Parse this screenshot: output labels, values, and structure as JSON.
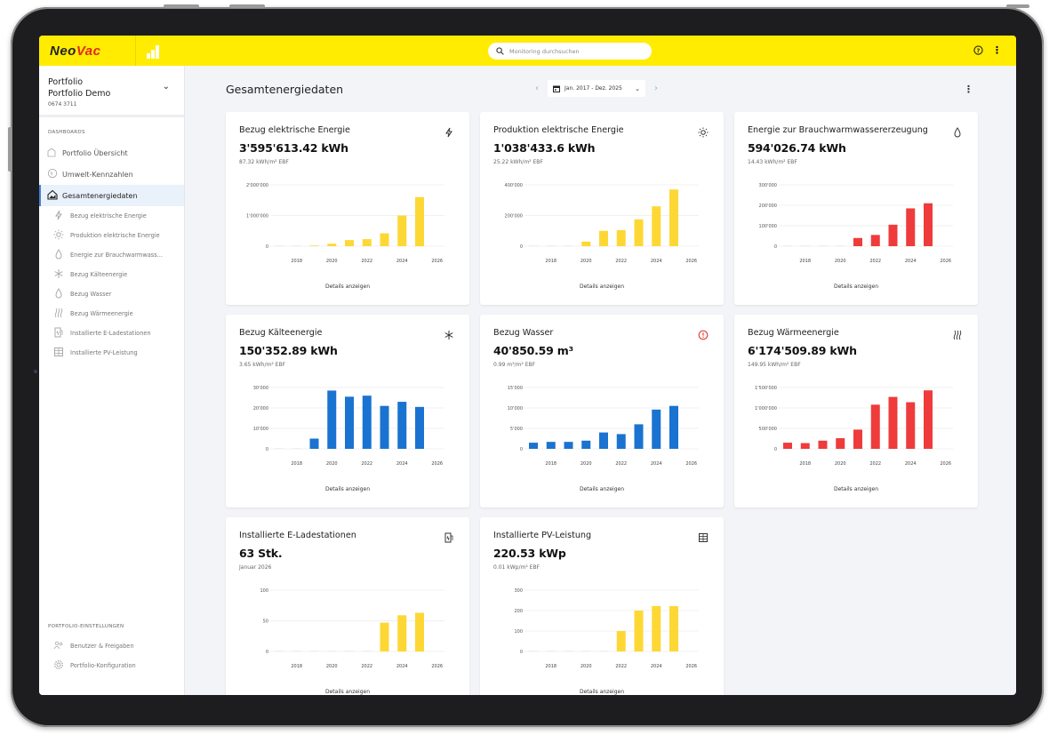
{
  "brand": {
    "name_part1": "Neo",
    "name_part2": "Vac",
    "yellow": "#ffec00"
  },
  "search": {
    "placeholder": "Monitoring durchsuchen"
  },
  "topbar": {
    "help_icon": "help-circle-icon",
    "menu_icon": "kebab-menu-icon"
  },
  "sidebar": {
    "portfolio_label": "Portfolio",
    "portfolio_name": "Portfolio Demo",
    "portfolio_id": "0674 3711",
    "dashboards_heading": "DASHBOARDS",
    "items": [
      {
        "label": "Portfolio Übersicht",
        "icon": "building-icon"
      },
      {
        "label": "Umwelt-Kennzahlen",
        "icon": "globe-icon"
      },
      {
        "label": "Gesamtenergiedaten",
        "icon": "home-chart-icon",
        "active": true
      }
    ],
    "sub_items": [
      {
        "label": "Bezug elektrische Energie",
        "icon": "bolt-icon"
      },
      {
        "label": "Produktion elektrische Energie",
        "icon": "sun-icon"
      },
      {
        "label": "Energie zur Brauchwarmwass...",
        "icon": "drop-icon"
      },
      {
        "label": "Bezug Kälteenergie",
        "icon": "snowflake-icon"
      },
      {
        "label": "Bezug Wasser",
        "icon": "drop-icon"
      },
      {
        "label": "Bezug Wärmeenergie",
        "icon": "heat-icon"
      },
      {
        "label": "Installierte E-Ladestationen",
        "icon": "charging-station-icon"
      },
      {
        "label": "Installierte PV-Leistung",
        "icon": "solar-panel-icon"
      }
    ],
    "settings_heading": "PORTFOLIO-EINSTELLUNGEN",
    "settings_items": [
      {
        "label": "Benutzer & Freigaben",
        "icon": "users-icon"
      },
      {
        "label": "Portfolio-Konfiguration",
        "icon": "gear-icon"
      }
    ]
  },
  "main": {
    "title": "Gesamtenergiedaten",
    "date_range": "Jan. 2017 - Dez. 2025",
    "details_label": "Details anzeigen"
  },
  "cards": [
    {
      "title": "Bezug elektrische Energie",
      "value": "3'595'613.42 kWh",
      "sub": "87.32 kWh/m² EBF",
      "icon": "bolt-icon"
    },
    {
      "title": "Produktion elektrische Energie",
      "value": "1'038'433.6 kWh",
      "sub": "25.22 kWh/m² EBF",
      "icon": "sun-icon"
    },
    {
      "title": "Energie zur Brauchwarmwassererzeugung",
      "value": "594'026.74 kWh",
      "sub": "14.43 kWh/m² EBF",
      "icon": "drop-icon"
    },
    {
      "title": "Bezug Kälteenergie",
      "value": "150'352.89 kWh",
      "sub": "3.65 kWh/m² EBF",
      "icon": "snowflake-icon"
    },
    {
      "title": "Bezug Wasser",
      "value": "40'850.59 m³",
      "sub": "0.99 m³/m² EBF",
      "icon": "alert-icon"
    },
    {
      "title": "Bezug Wärmeenergie",
      "value": "6'174'509.89 kWh",
      "sub": "149.95 kWh/m² EBF",
      "icon": "heat-icon"
    },
    {
      "title": "Installierte E-Ladestationen",
      "value": "63 Stk.",
      "sub": "Januar 2026",
      "icon": "charging-station-icon"
    },
    {
      "title": "Installierte PV-Leistung",
      "value": "220.53 kWp",
      "sub": "0.01 kWp/m² EBF",
      "icon": "solar-panel-icon"
    }
  ],
  "chart_data": [
    {
      "type": "bar",
      "color": "#fdd835",
      "categories": [
        2017,
        2018,
        2019,
        2020,
        2021,
        2022,
        2023,
        2024,
        2025
      ],
      "values": [
        0,
        0,
        20000,
        80000,
        200000,
        230000,
        420000,
        1000000,
        1600000
      ],
      "ylim": [
        0,
        2000000
      ],
      "yticks": [
        "0",
        "1'000'000",
        "2'000'000"
      ],
      "xticks": [
        "2018",
        "2020",
        "2022",
        "2024",
        "2026"
      ],
      "grid": true
    },
    {
      "type": "bar",
      "color": "#fdd835",
      "categories": [
        2017,
        2018,
        2019,
        2020,
        2021,
        2022,
        2023,
        2024,
        2025
      ],
      "values": [
        0,
        0,
        0,
        30000,
        100000,
        105000,
        175000,
        260000,
        370000
      ],
      "ylim": [
        0,
        400000
      ],
      "yticks": [
        "0",
        "200'000",
        "400'000"
      ],
      "xticks": [
        "2018",
        "2020",
        "2022",
        "2024",
        "2026"
      ],
      "grid": true
    },
    {
      "type": "bar",
      "color": "#ef3b3b",
      "categories": [
        2017,
        2018,
        2019,
        2020,
        2021,
        2022,
        2023,
        2024,
        2025
      ],
      "values": [
        0,
        0,
        0,
        0,
        40000,
        55000,
        105000,
        185000,
        210000
      ],
      "ylim": [
        0,
        300000
      ],
      "yticks": [
        "0",
        "100'000",
        "200'000",
        "300'000"
      ],
      "xticks": [
        "2018",
        "2020",
        "2022",
        "2024",
        "2026"
      ],
      "grid": true
    },
    {
      "type": "bar",
      "color": "#1a73d0",
      "categories": [
        2017,
        2018,
        2019,
        2020,
        2021,
        2022,
        2023,
        2024,
        2025
      ],
      "values": [
        0,
        0,
        5000,
        28500,
        25500,
        26000,
        21000,
        23000,
        20500
      ],
      "ylim": [
        0,
        30000
      ],
      "yticks": [
        "0",
        "10'000",
        "20'000",
        "30'000"
      ],
      "xticks": [
        "2018",
        "2020",
        "2022",
        "2024",
        "2026"
      ],
      "grid": true
    },
    {
      "type": "bar",
      "color": "#1a73d0",
      "categories": [
        2017,
        2018,
        2019,
        2020,
        2021,
        2022,
        2023,
        2024,
        2025
      ],
      "values": [
        1500,
        1700,
        1700,
        2000,
        4000,
        3600,
        6000,
        9600,
        10500
      ],
      "ylim": [
        0,
        15000
      ],
      "yticks": [
        "0",
        "5'000",
        "10'000",
        "15'000"
      ],
      "xticks": [
        "2018",
        "2020",
        "2022",
        "2024",
        "2026"
      ],
      "grid": true
    },
    {
      "type": "bar",
      "color": "#ef3b3b",
      "categories": [
        2017,
        2018,
        2019,
        2020,
        2021,
        2022,
        2023,
        2024,
        2025
      ],
      "values": [
        150000,
        140000,
        200000,
        260000,
        470000,
        1080000,
        1270000,
        1140000,
        1430000
      ],
      "ylim": [
        0,
        1500000
      ],
      "yticks": [
        "0",
        "500'000",
        "1'000'000",
        "1'500'000"
      ],
      "xticks": [
        "2018",
        "2020",
        "2022",
        "2024",
        "2026"
      ],
      "grid": true
    },
    {
      "type": "bar",
      "color": "#fdd835",
      "categories": [
        2017,
        2018,
        2019,
        2020,
        2021,
        2022,
        2023,
        2024,
        2025
      ],
      "values": [
        0,
        0,
        0,
        0,
        0,
        0,
        47,
        59,
        63
      ],
      "ylim": [
        0,
        100
      ],
      "yticks": [
        "0",
        "50",
        "100"
      ],
      "xticks": [
        "2018",
        "2020",
        "2022",
        "2024",
        "2026"
      ],
      "grid": true
    },
    {
      "type": "bar",
      "color": "#fdd835",
      "categories": [
        2017,
        2018,
        2019,
        2020,
        2021,
        2022,
        2023,
        2024,
        2025
      ],
      "values": [
        0,
        0,
        0,
        0,
        0,
        100,
        200,
        222,
        222
      ],
      "ylim": [
        0,
        300
      ],
      "yticks": [
        "0",
        "100",
        "200",
        "300"
      ],
      "xticks": [
        "2018",
        "2020",
        "2022",
        "2024",
        "2026"
      ],
      "grid": true
    }
  ]
}
